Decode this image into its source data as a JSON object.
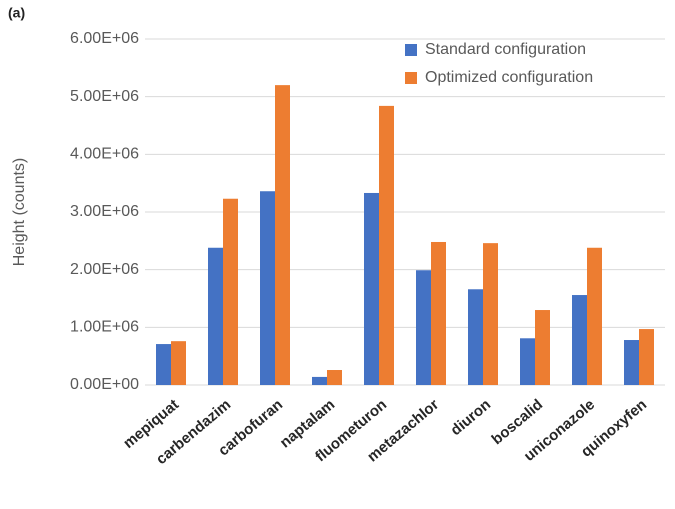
{
  "chart_data": {
    "type": "bar",
    "panel_label": "(a)",
    "ylabel": "Height (counts)",
    "categories": [
      "mepiquat",
      "carbendazim",
      "carbofuran",
      "naptalam",
      "fluometuron",
      "metazachlor",
      "diuron",
      "boscalid",
      "uniconazole",
      "quinoxyfen"
    ],
    "series": [
      {
        "name": "Standard configuration",
        "color": "#4472c4",
        "values": [
          710000,
          2380000,
          3360000,
          140000,
          3330000,
          1990000,
          1660000,
          810000,
          1560000,
          780000
        ]
      },
      {
        "name": "Optimized configuration",
        "color": "#ed7d31",
        "values": [
          760000,
          3230000,
          5200000,
          260000,
          4840000,
          2480000,
          2460000,
          1300000,
          2380000,
          970000
        ]
      }
    ],
    "ylim": [
      0,
      6000000
    ],
    "yticks": [
      {
        "value": 0,
        "label": "0.00E+00"
      },
      {
        "value": 1000000,
        "label": "1.00E+06"
      },
      {
        "value": 2000000,
        "label": "2.00E+06"
      },
      {
        "value": 3000000,
        "label": "3.00E+06"
      },
      {
        "value": 4000000,
        "label": "4.00E+06"
      },
      {
        "value": 5000000,
        "label": "5.00E+06"
      },
      {
        "value": 6000000,
        "label": "6.00E+06"
      }
    ],
    "grid": true,
    "legend": "top-right"
  }
}
